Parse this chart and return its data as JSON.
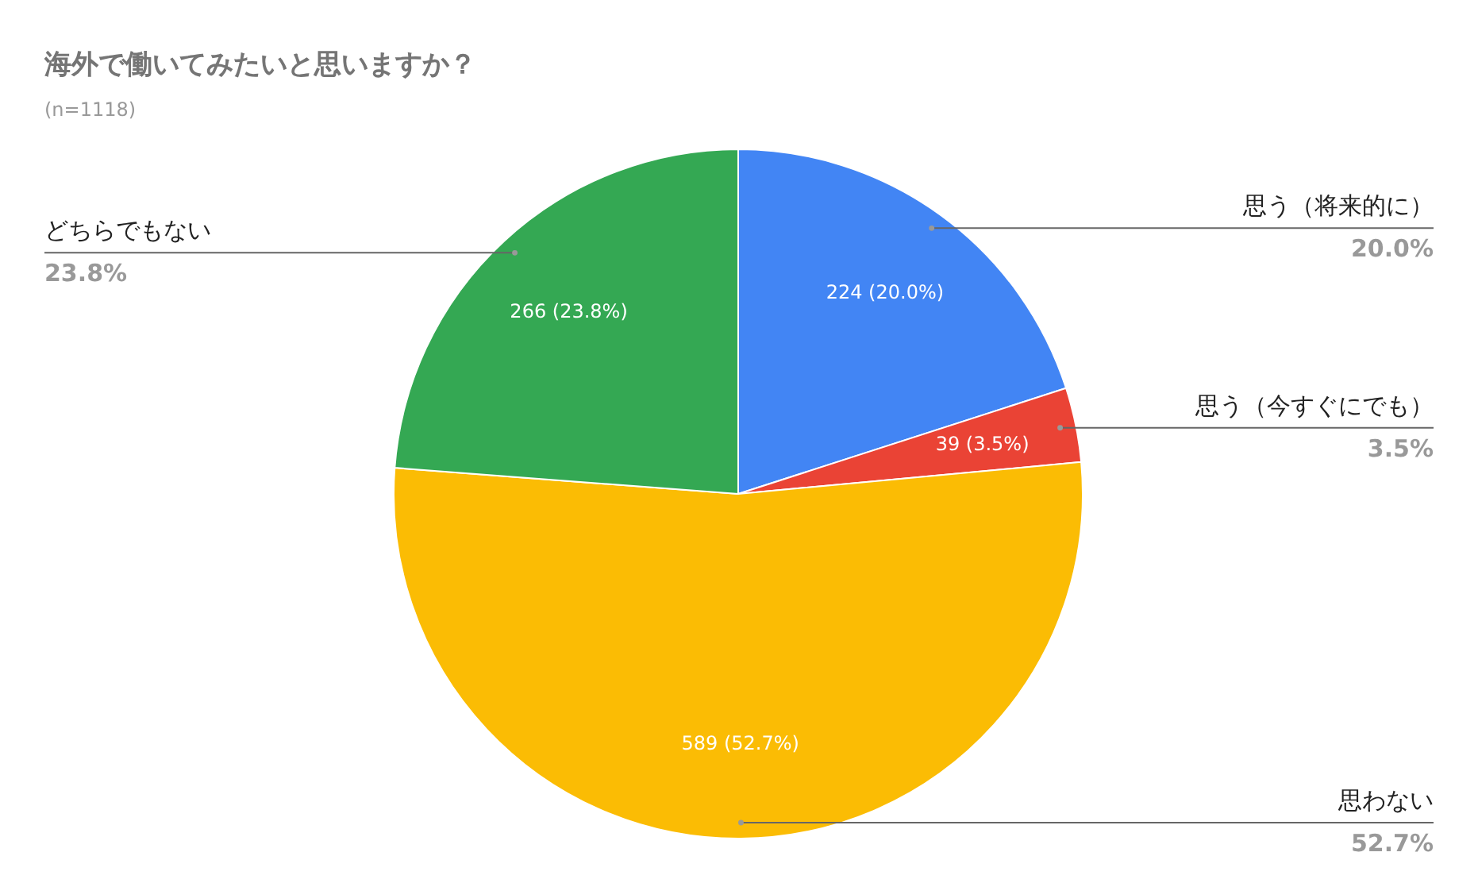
{
  "chart_data": {
    "type": "pie",
    "title": "海外で働いてみたいと思いますか？",
    "subtitle": "(n=1118)",
    "categories": [
      "思う（将来的に）",
      "思う（今すぐにでも）",
      "思わない",
      "どちらでもない"
    ],
    "values": [
      224,
      39,
      589,
      266
    ],
    "colors": [
      "#4285f4",
      "#ea4335",
      "#fbbc04",
      "#34a853"
    ],
    "value_labels": [
      "224 (20.0%)",
      "39 (3.5%)",
      "589 (52.7%)",
      "266 (23.8%)"
    ],
    "annotations": [
      "20.0%",
      "3.5%",
      "52.7%",
      "23.8%"
    ],
    "legend": false
  }
}
